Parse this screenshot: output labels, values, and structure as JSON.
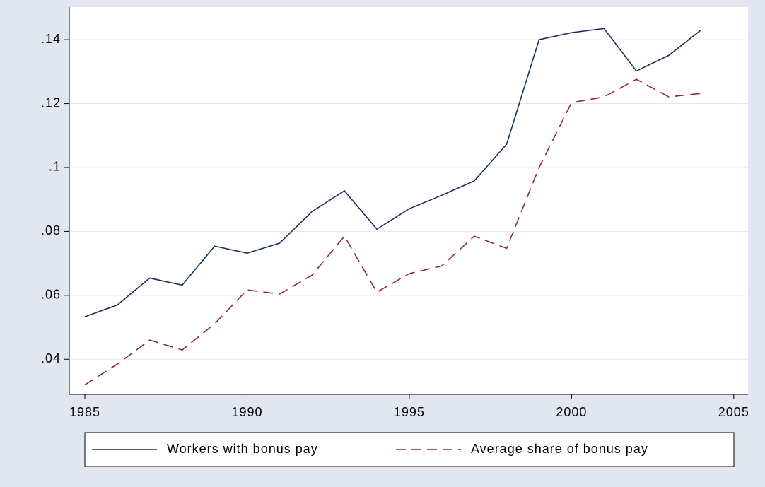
{
  "chart_data": {
    "type": "line",
    "x": [
      1985,
      1986,
      1987,
      1988,
      1989,
      1990,
      1991,
      1992,
      1993,
      1994,
      1995,
      1996,
      1997,
      1998,
      1999,
      2000,
      2001,
      2002,
      2003,
      2004
    ],
    "series": [
      {
        "name": "Workers with bonus pay",
        "color": "#1a2f5a",
        "dash": "solid",
        "values": [
          0.0533,
          0.057,
          0.0654,
          0.0632,
          0.0754,
          0.0732,
          0.0763,
          0.0862,
          0.0927,
          0.0807,
          0.0871,
          0.0913,
          0.0958,
          0.1073,
          0.14,
          0.1422,
          0.1435,
          0.1302,
          0.1351,
          0.1431
        ]
      },
      {
        "name": "Average share of bonus pay",
        "color": "#8b2a2a",
        "dash": "dashed",
        "values": [
          0.032,
          0.0385,
          0.046,
          0.0429,
          0.0511,
          0.0617,
          0.0604,
          0.0663,
          0.0785,
          0.061,
          0.0668,
          0.0692,
          0.0785,
          0.0747,
          0.1,
          0.1203,
          0.1221,
          0.1276,
          0.1221,
          0.1232
        ]
      }
    ],
    "xlim": [
      1984.52,
      2005.44
    ],
    "xticks": [
      1985,
      1990,
      1995,
      2000,
      2005
    ],
    "ylim": [
      0.029,
      0.1502
    ],
    "yticks": [
      {
        "value": 0.04,
        "label": ".04"
      },
      {
        "value": 0.06,
        "label": ".06"
      },
      {
        "value": 0.08,
        "label": ".08"
      },
      {
        "value": 0.1,
        "label": ".1"
      },
      {
        "value": 0.12,
        "label": ".12"
      },
      {
        "value": 0.14,
        "label": ".14"
      }
    ],
    "grid": true,
    "legend": "bottom"
  }
}
